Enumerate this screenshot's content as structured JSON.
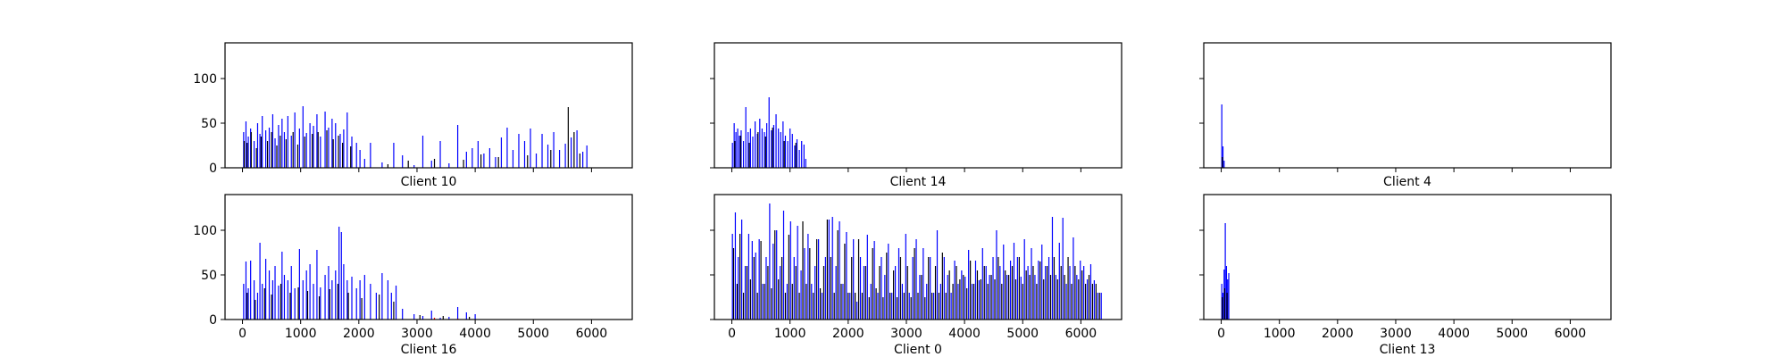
{
  "chart_data": [
    {
      "type": "bar",
      "xlabel": "Client 10",
      "ylim": [
        0,
        140
      ],
      "xlim": [
        -300,
        6700
      ],
      "yticks": [
        0,
        50,
        100
      ],
      "xticks": [
        0,
        1000,
        2000,
        3000,
        4000,
        5000,
        6000
      ],
      "show_xtick_labels": false,
      "show_ytick_labels": true,
      "series": [
        {
          "color": "#0000ff",
          "x": [
            20,
            60,
            100,
            140,
            200,
            260,
            300,
            340,
            400,
            460,
            520,
            560,
            620,
            680,
            720,
            780,
            840,
            900,
            980,
            1040,
            1100,
            1160,
            1220,
            1280,
            1340,
            1420,
            1480,
            1540,
            1600,
            1680,
            1740,
            1800,
            1880,
            1960,
            2020,
            2100,
            2200,
            2400,
            2600,
            2750,
            2950,
            3100,
            3250,
            3400,
            3550,
            3700,
            3850,
            3950,
            4050,
            4150,
            4250,
            4350,
            4450,
            4550,
            4650,
            4750,
            4850,
            4950,
            5050,
            5150,
            5250,
            5350,
            5450,
            5550,
            5650,
            5750,
            5850,
            5920
          ],
          "values": [
            40,
            52,
            35,
            44,
            30,
            50,
            38,
            58,
            42,
            45,
            60,
            33,
            48,
            55,
            40,
            58,
            36,
            62,
            44,
            69,
            39,
            50,
            47,
            60,
            35,
            63,
            45,
            55,
            50,
            38,
            43,
            62,
            35,
            28,
            20,
            10,
            28,
            6,
            28,
            14,
            3,
            36,
            8,
            30,
            5,
            48,
            18,
            22,
            30,
            16,
            22,
            12,
            34,
            45,
            20,
            38,
            30,
            44,
            16,
            38,
            26,
            40,
            20,
            27,
            34,
            42,
            18,
            25
          ]
        },
        {
          "color": "#000000",
          "x": [
            30,
            80,
            150,
            240,
            320,
            430,
            500,
            590,
            650,
            750,
            870,
            950,
            1070,
            1200,
            1300,
            1450,
            1560,
            1650,
            1720,
            1860,
            2500,
            2850,
            3300,
            3800,
            4100,
            4400,
            4900,
            5300,
            5600,
            5700,
            5800
          ],
          "values": [
            30,
            28,
            40,
            22,
            35,
            30,
            40,
            25,
            36,
            32,
            40,
            26,
            35,
            38,
            40,
            42,
            32,
            36,
            28,
            24,
            4,
            8,
            10,
            9,
            15,
            12,
            14,
            20,
            68,
            40,
            16
          ]
        }
      ]
    },
    {
      "type": "bar",
      "xlabel": "Client 14",
      "ylim": [
        0,
        140
      ],
      "xlim": [
        -300,
        6700
      ],
      "yticks": [
        0,
        50,
        100
      ],
      "xticks": [
        0,
        1000,
        2000,
        3000,
        4000,
        5000,
        6000
      ],
      "show_xtick_labels": false,
      "show_ytick_labels": false,
      "series": [
        {
          "color": "#0000ff",
          "x": [
            10,
            40,
            70,
            100,
            130,
            160,
            200,
            240,
            280,
            320,
            360,
            400,
            440,
            480,
            520,
            560,
            600,
            640,
            680,
            720,
            760,
            800,
            840,
            880,
            920,
            960,
            1000,
            1040,
            1080,
            1120,
            1160,
            1200,
            1240,
            1270
          ],
          "values": [
            28,
            50,
            40,
            44,
            36,
            42,
            30,
            68,
            40,
            44,
            35,
            52,
            38,
            55,
            44,
            40,
            50,
            79,
            42,
            48,
            60,
            44,
            40,
            52,
            36,
            30,
            44,
            38,
            25,
            32,
            20,
            30,
            26,
            10
          ]
        },
        {
          "color": "#000000",
          "x": [
            50,
            150,
            300,
            450,
            580,
            700,
            900,
            1100
          ],
          "values": [
            30,
            36,
            28,
            40,
            35,
            45,
            30,
            28
          ]
        }
      ]
    },
    {
      "type": "bar",
      "xlabel": "Client 4",
      "ylim": [
        0,
        140
      ],
      "xlim": [
        -300,
        6700
      ],
      "yticks": [
        0,
        50,
        100
      ],
      "xticks": [
        0,
        1000,
        2000,
        3000,
        4000,
        5000,
        6000
      ],
      "show_xtick_labels": false,
      "show_ytick_labels": false,
      "series": [
        {
          "color": "#0000ff",
          "x": [
            10,
            30,
            50
          ],
          "values": [
            71,
            24,
            8
          ]
        },
        {
          "color": "#000000",
          "x": [
            20
          ],
          "values": [
            12
          ]
        }
      ]
    },
    {
      "type": "bar",
      "xlabel": "Client 16",
      "ylim": [
        0,
        140
      ],
      "xlim": [
        -300,
        6700
      ],
      "yticks": [
        0,
        50,
        100
      ],
      "xticks": [
        0,
        1000,
        2000,
        3000,
        4000,
        5000,
        6000
      ],
      "show_xtick_labels": true,
      "show_ytick_labels": true,
      "series": [
        {
          "color": "#0000ff",
          "x": [
            20,
            60,
            100,
            140,
            200,
            260,
            300,
            340,
            400,
            460,
            520,
            560,
            620,
            680,
            720,
            780,
            840,
            900,
            980,
            1040,
            1100,
            1160,
            1220,
            1280,
            1340,
            1420,
            1480,
            1540,
            1600,
            1660,
            1700,
            1740,
            1800,
            1880,
            1960,
            2020,
            2100,
            2200,
            2300,
            2400,
            2500,
            2560,
            2640,
            2750,
            2950,
            3100,
            3250,
            3400,
            3550,
            3700,
            3850,
            4000
          ],
          "values": [
            40,
            65,
            35,
            66,
            44,
            30,
            86,
            40,
            68,
            55,
            44,
            60,
            38,
            76,
            50,
            44,
            60,
            35,
            79,
            44,
            55,
            62,
            40,
            78,
            36,
            50,
            60,
            44,
            55,
            104,
            98,
            62,
            44,
            48,
            35,
            44,
            50,
            40,
            30,
            52,
            44,
            30,
            38,
            12,
            6,
            4,
            10,
            2,
            3,
            14,
            8,
            6
          ]
        },
        {
          "color": "#000000",
          "x": [
            80,
            220,
            380,
            500,
            660,
            820,
            960,
            1120,
            1320,
            1500,
            1640,
            1820,
            2050,
            2350,
            2600,
            3050,
            3450,
            3900
          ],
          "values": [
            30,
            22,
            35,
            28,
            40,
            30,
            36,
            32,
            26,
            34,
            40,
            30,
            24,
            28,
            20,
            5,
            4,
            3
          ]
        },
        {
          "color": "#ff0000",
          "x": [
            3300,
            3700
          ],
          "values": [
            2,
            1
          ]
        }
      ]
    },
    {
      "type": "bar",
      "xlabel": "Client 0",
      "ylim": [
        0,
        140
      ],
      "xlim": [
        -300,
        6700
      ],
      "yticks": [
        0,
        50,
        100
      ],
      "xticks": [
        0,
        1000,
        2000,
        3000,
        4000,
        5000,
        6000
      ],
      "show_xtick_labels": true,
      "show_ytick_labels": false,
      "series": [
        {
          "color": "#0000ff",
          "x": [
            10,
            60,
            110,
            170,
            230,
            290,
            350,
            410,
            470,
            530,
            590,
            650,
            710,
            770,
            830,
            890,
            950,
            1010,
            1070,
            1130,
            1190,
            1250,
            1310,
            1370,
            1430,
            1490,
            1550,
            1610,
            1670,
            1730,
            1790,
            1850,
            1910,
            1970,
            2030,
            2090,
            2150,
            2210,
            2270,
            2330,
            2390,
            2450,
            2510,
            2570,
            2630,
            2690,
            2750,
            2810,
            2870,
            2930,
            2990,
            3050,
            3110,
            3170,
            3230,
            3290,
            3350,
            3410,
            3470,
            3530,
            3590,
            3650,
            3710,
            3770,
            3830,
            3890,
            3950,
            4010,
            4070,
            4130,
            4190,
            4250,
            4310,
            4370,
            4430,
            4490,
            4550,
            4610,
            4670,
            4730,
            4790,
            4850,
            4910,
            4970,
            5030,
            5090,
            5150,
            5210,
            5270,
            5330,
            5390,
            5450,
            5510,
            5570,
            5630,
            5690,
            5750,
            5810,
            5870,
            5930,
            5990,
            6050,
            6110,
            6170,
            6230,
            6290,
            6350
          ],
          "values": [
            96,
            120,
            70,
            112,
            60,
            96,
            88,
            75,
            90,
            40,
            70,
            130,
            85,
            100,
            60,
            122,
            40,
            110,
            70,
            105,
            55,
            80,
            96,
            40,
            60,
            90,
            30,
            70,
            112,
            115,
            60,
            110,
            40,
            98,
            30,
            90,
            20,
            70,
            60,
            95,
            40,
            88,
            30,
            70,
            50,
            85,
            30,
            60,
            80,
            40,
            96,
            30,
            70,
            90,
            50,
            80,
            40,
            70,
            30,
            100,
            40,
            70,
            50,
            30,
            66,
            40,
            55,
            48,
            78,
            40,
            66,
            44,
            80,
            60,
            50,
            70,
            100,
            60,
            84,
            50,
            66,
            86,
            70,
            48,
            90,
            60,
            80,
            50,
            66,
            84,
            60,
            70,
            115,
            50,
            86,
            114,
            40,
            60,
            92,
            50,
            66,
            60,
            45,
            62,
            44,
            30,
            30
          ]
        },
        {
          "color": "#000000",
          "x": [
            30,
            90,
            140,
            200,
            260,
            320,
            380,
            440,
            500,
            560,
            620,
            680,
            740,
            800,
            860,
            920,
            980,
            1040,
            1100,
            1160,
            1220,
            1280,
            1340,
            1400,
            1460,
            1520,
            1580,
            1640,
            1700,
            1760,
            1820,
            1880,
            1940,
            2000,
            2060,
            2120,
            2180,
            2240,
            2300,
            2360,
            2420,
            2480,
            2540,
            2600,
            2660,
            2720,
            2780,
            2840,
            2900,
            2960,
            3020,
            3080,
            3140,
            3200,
            3260,
            3320,
            3380,
            3440,
            3500,
            3560,
            3620,
            3680,
            3740,
            3800,
            3860,
            3920,
            3980,
            4040,
            4100,
            4160,
            4220,
            4280,
            4340,
            4400,
            4460,
            4520,
            4580,
            4640,
            4700,
            4760,
            4820,
            4880,
            4940,
            5000,
            5060,
            5120,
            5180,
            5240,
            5300,
            5360,
            5420,
            5480,
            5540,
            5600,
            5660,
            5720,
            5780,
            5840,
            5900,
            5960,
            6020,
            6080,
            6140,
            6200,
            6260,
            6320
          ],
          "values": [
            80,
            40,
            96,
            30,
            60,
            45,
            70,
            30,
            88,
            40,
            60,
            35,
            100,
            45,
            70,
            30,
            95,
            40,
            60,
            30,
            110,
            40,
            80,
            30,
            90,
            35,
            60,
            112,
            70,
            30,
            100,
            40,
            85,
            30,
            70,
            30,
            90,
            30,
            60,
            25,
            80,
            35,
            60,
            25,
            75,
            30,
            55,
            25,
            70,
            30,
            60,
            25,
            80,
            30,
            50,
            25,
            70,
            30,
            60,
            30,
            75,
            30,
            55,
            40,
            60,
            45,
            50,
            35,
            66,
            40,
            55,
            45,
            60,
            40,
            50,
            45,
            70,
            40,
            55,
            50,
            60,
            45,
            70,
            40,
            55,
            50,
            60,
            40,
            65,
            45,
            60,
            50,
            70,
            45,
            60,
            50,
            70,
            40,
            60,
            45,
            55,
            40,
            50,
            40,
            40,
            30
          ]
        }
      ]
    },
    {
      "type": "bar",
      "xlabel": "Client 13",
      "ylim": [
        0,
        140
      ],
      "xlim": [
        -300,
        6700
      ],
      "yticks": [
        0,
        50,
        100
      ],
      "xticks": [
        0,
        1000,
        2000,
        3000,
        4000,
        5000,
        6000
      ],
      "show_xtick_labels": true,
      "show_ytick_labels": false,
      "series": [
        {
          "color": "#0000ff",
          "x": [
            10,
            30,
            50,
            70,
            90,
            110,
            130
          ],
          "values": [
            40,
            30,
            56,
            108,
            60,
            45,
            52
          ]
        },
        {
          "color": "#000000",
          "x": [
            20,
            60,
            100
          ],
          "values": [
            25,
            35,
            30
          ]
        }
      ]
    }
  ]
}
